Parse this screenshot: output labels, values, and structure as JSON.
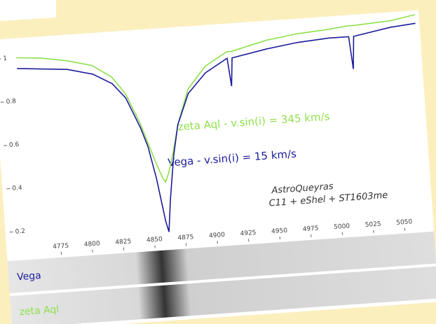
{
  "chart_data": {
    "type": "line",
    "x": [
      4750,
      4770,
      4790,
      4810,
      4825,
      4835,
      4845,
      4850,
      4855,
      4860,
      4862,
      4865,
      4870,
      4875,
      4885,
      4900,
      4918,
      4920,
      4922,
      4950,
      4975,
      5000,
      5016,
      5018,
      5020,
      5050,
      5070
    ],
    "series": [
      {
        "name": "zeta Aql",
        "color": "#8fe04a",
        "values": [
          1.0,
          0.99,
          0.97,
          0.94,
          0.88,
          0.8,
          0.66,
          0.57,
          0.48,
          0.4,
          0.38,
          0.42,
          0.52,
          0.64,
          0.8,
          0.9,
          0.96,
          0.96,
          0.96,
          1.0,
          1.02,
          1.03,
          1.04,
          1.04,
          1.04,
          1.05,
          1.07
        ]
      },
      {
        "name": "Vega",
        "color": "#1c1c9c",
        "values": [
          0.95,
          0.94,
          0.93,
          0.9,
          0.85,
          0.78,
          0.64,
          0.55,
          0.4,
          0.2,
          0.15,
          0.3,
          0.5,
          0.64,
          0.78,
          0.87,
          0.93,
          0.8,
          0.93,
          0.96,
          0.98,
          0.99,
          0.99,
          0.84,
          0.99,
          1.02,
          1.03
        ]
      }
    ],
    "xlim": [
      4735,
      5072
    ],
    "ylim": [
      0.08,
      1.08
    ],
    "xticks": [
      4775,
      4800,
      4825,
      4850,
      4875,
      4900,
      4925,
      4950,
      4975,
      5000,
      5025,
      5050
    ],
    "yticks": [
      0.2,
      0.4,
      0.6,
      0.8,
      1
    ],
    "annotations": [
      "zeta Aql - v.sin(i) = 345 km/s",
      "Vega - v.sin(i) = 15 km/s",
      "AstroQueyras",
      "C11 + eShel + ST1603me"
    ],
    "strip_labels": [
      "Vega",
      "zeta Aql"
    ]
  }
}
